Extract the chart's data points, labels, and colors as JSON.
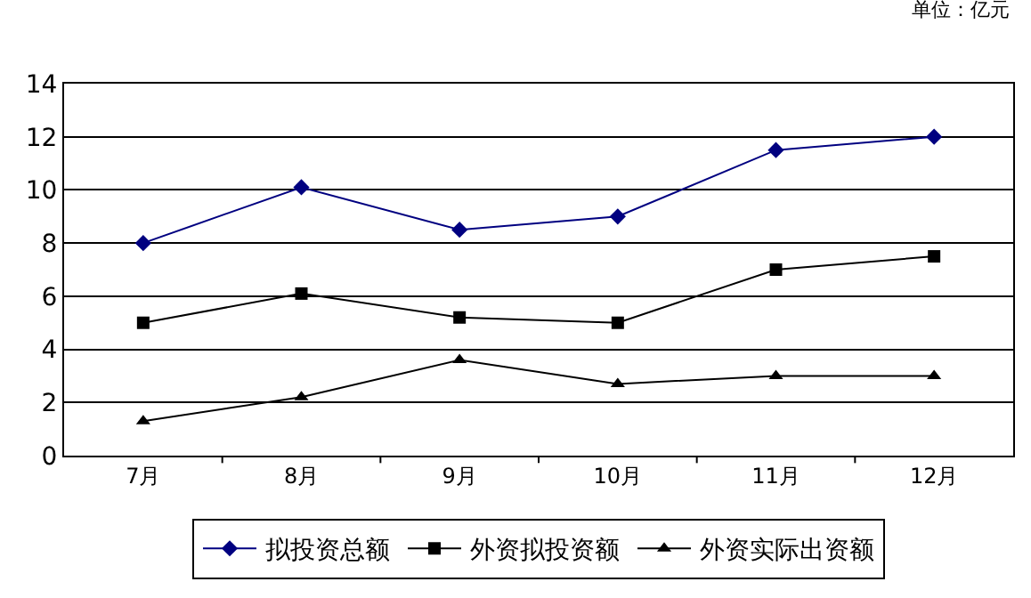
{
  "chart_data": {
    "type": "line",
    "annotations": [
      "单位：亿元"
    ],
    "categories": [
      "7月",
      "8月",
      "9月",
      "10月",
      "11月",
      "12月"
    ],
    "series": [
      {
        "name": "拟投资总额",
        "color": "#000080",
        "marker": "diamond",
        "values": [
          8,
          10.1,
          8.5,
          9,
          11.5,
          12
        ]
      },
      {
        "name": "外资拟投资额",
        "color": "#000000",
        "marker": "square",
        "values": [
          5,
          6.1,
          5.2,
          5,
          7,
          7.5
        ]
      },
      {
        "name": "外资实际出资额",
        "color": "#000000",
        "marker": "triangle",
        "values": [
          1.3,
          2.2,
          3.6,
          2.7,
          3,
          3
        ]
      }
    ],
    "ylim": [
      0,
      14
    ],
    "yticks": [
      0,
      2,
      4,
      6,
      8,
      10,
      12,
      14
    ],
    "grid": "y",
    "legend": "bottom",
    "line_style": "solid"
  }
}
